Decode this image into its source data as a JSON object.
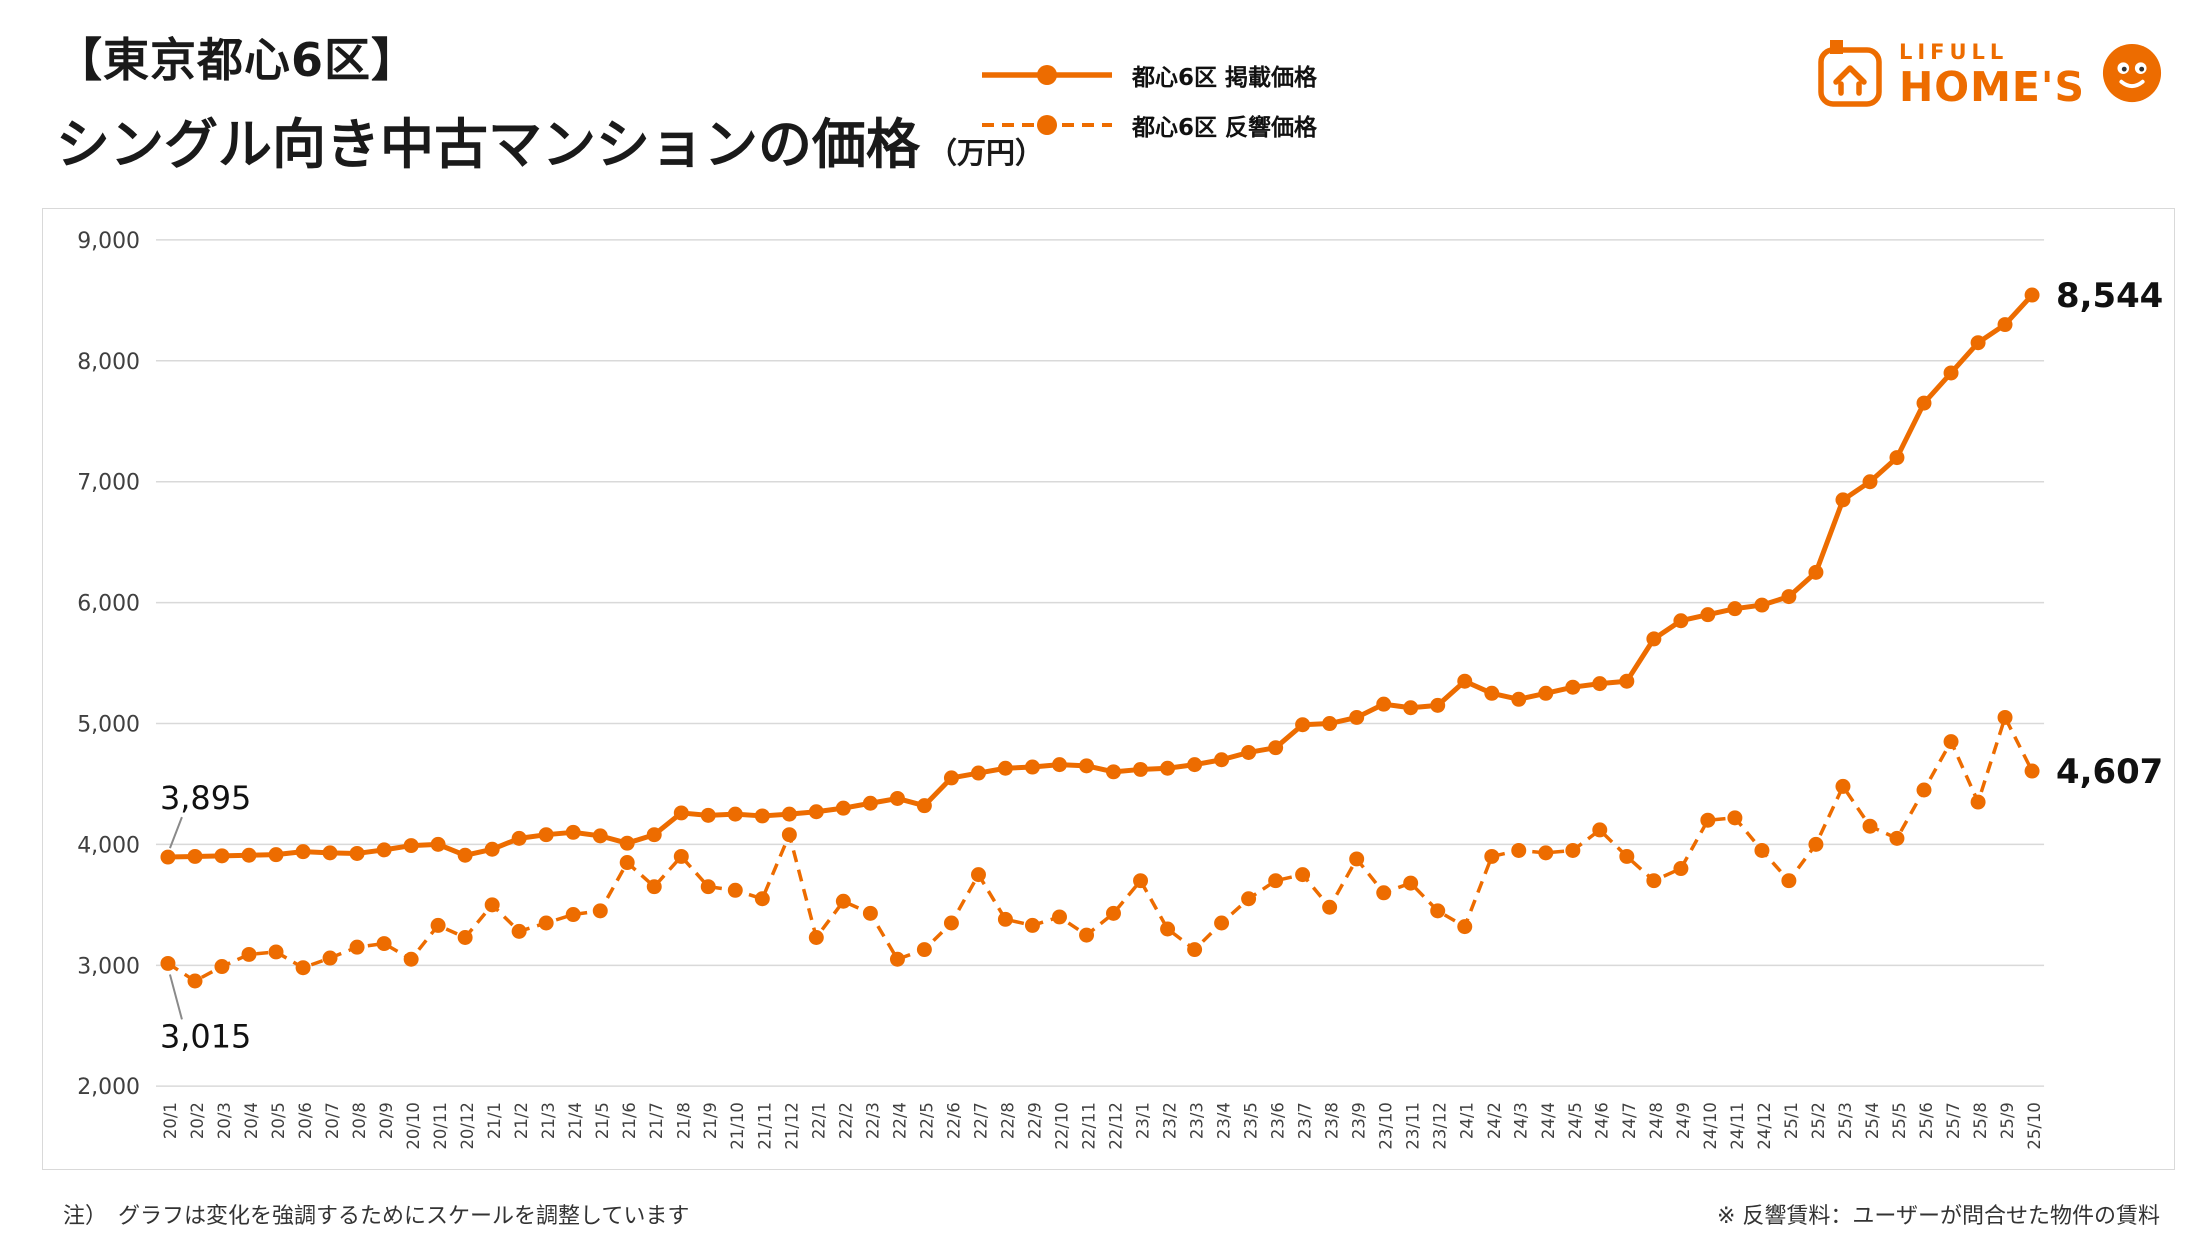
{
  "header": {
    "title_line1": "【東京都心6区】",
    "title_line2": "シングル向き中古マンションの価格",
    "title_unit": "（万円）",
    "logo": {
      "lifull": "LIFULL",
      "homes": "HOME'S"
    }
  },
  "legend": {
    "series1_label": "都心6区 掲載価格",
    "series2_label": "都心6区 反響価格"
  },
  "colors": {
    "accent": "#ED6C00",
    "grid": "#d9d9d9",
    "tick_text": "#404040",
    "annotation_text": "#111111",
    "connector": "#8a8a8a"
  },
  "chart_data": {
    "type": "line",
    "title": "シングル向き中古マンションの価格（万円）",
    "ylim": [
      2000,
      9000
    ],
    "yticks": [
      2000,
      3000,
      4000,
      5000,
      6000,
      7000,
      8000,
      9000
    ],
    "grid": true,
    "legend_position": "top-center",
    "x": [
      "20/1",
      "20/2",
      "20/3",
      "20/4",
      "20/5",
      "20/6",
      "20/7",
      "20/8",
      "20/9",
      "20/10",
      "20/11",
      "20/12",
      "21/1",
      "21/2",
      "21/3",
      "21/4",
      "21/5",
      "21/6",
      "21/7",
      "21/8",
      "21/9",
      "21/10",
      "21/11",
      "21/12",
      "22/1",
      "22/2",
      "22/3",
      "22/4",
      "22/5",
      "22/6",
      "22/7",
      "22/8",
      "22/9",
      "22/10",
      "22/11",
      "22/12",
      "23/1",
      "23/2",
      "23/3",
      "23/4",
      "23/5",
      "23/6",
      "23/7",
      "23/8",
      "23/9",
      "23/10",
      "23/11",
      "23/12",
      "24/1",
      "24/2",
      "24/3",
      "24/4",
      "24/5",
      "24/6",
      "24/7",
      "24/8",
      "24/9",
      "24/10",
      "24/11",
      "24/12",
      "25/1",
      "25/2",
      "25/3",
      "25/4",
      "25/5",
      "25/6",
      "25/7",
      "25/8",
      "25/9",
      "25/10"
    ],
    "series": [
      {
        "name": "都心6区 掲載価格",
        "style": "solid",
        "values": [
          3895,
          3900,
          3905,
          3910,
          3915,
          3940,
          3930,
          3925,
          3955,
          3990,
          4000,
          3910,
          3960,
          4050,
          4080,
          4100,
          4070,
          4010,
          4080,
          4260,
          4240,
          4250,
          4235,
          4250,
          4270,
          4300,
          4340,
          4380,
          4320,
          4550,
          4590,
          4630,
          4640,
          4660,
          4650,
          4600,
          4620,
          4630,
          4660,
          4700,
          4760,
          4800,
          4990,
          5000,
          5050,
          5160,
          5130,
          5150,
          5350,
          5250,
          5200,
          5250,
          5300,
          5330,
          5350,
          5700,
          5850,
          5900,
          5950,
          5980,
          6050,
          6250,
          6850,
          7000,
          7200,
          7650,
          7900,
          8150,
          8300,
          8544
        ]
      },
      {
        "name": "都心6区 反響価格",
        "style": "dashed",
        "values": [
          3015,
          2870,
          2990,
          3090,
          3110,
          2980,
          3060,
          3150,
          3180,
          3050,
          3330,
          3230,
          3500,
          3280,
          3350,
          3420,
          3450,
          3850,
          3650,
          3900,
          3650,
          3620,
          3550,
          4080,
          3230,
          3530,
          3430,
          3050,
          3130,
          3350,
          3750,
          3380,
          3330,
          3400,
          3250,
          3430,
          3700,
          3300,
          3130,
          3350,
          3550,
          3700,
          3750,
          3480,
          3880,
          3600,
          3680,
          3450,
          3320,
          3900,
          3950,
          3930,
          3950,
          4120,
          3900,
          3700,
          3800,
          4200,
          4220,
          3950,
          3700,
          4000,
          4480,
          4150,
          4050,
          4450,
          4850,
          4350,
          5050,
          4607
        ]
      }
    ],
    "annotations": [
      {
        "text": "3,895",
        "series": 0,
        "point": "first",
        "placement": "above"
      },
      {
        "text": "8,544",
        "series": 0,
        "point": "last",
        "placement": "right"
      },
      {
        "text": "3,015",
        "series": 1,
        "point": "first",
        "placement": "below"
      },
      {
        "text": "4,607",
        "series": 1,
        "point": "last",
        "placement": "right"
      }
    ]
  },
  "footer": {
    "note_left": "注）　グラフは変化を強調するためにスケールを調整しています",
    "note_right": "※ 反響賃料：ユーザーが問合せた物件の賃料"
  }
}
